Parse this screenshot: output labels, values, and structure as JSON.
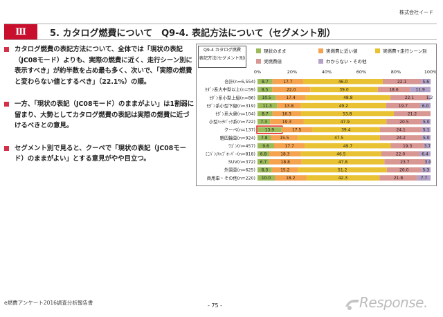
{
  "header": {
    "company": "株式会社イード",
    "section_number": "Ⅲ",
    "title": "5. カタログ燃費について　Q9-4. 表記方法について（セグメント別）"
  },
  "bullets": [
    "カタログ燃費の表記方法について、全体では「現状の表記（JC08モード）よりも、実際の燃費に近く、走行シーン別に表示すべき」が約半数を占め最も多く、次いで、「実際の燃費と変わらない値とするべき」（22.1%）の順。",
    "一方、「現状の表記（JC08モード）のままがよい」は1割弱に留まり、大勢としてカタログ燃費の表記は実際の燃費に近づけるべきとの意見。",
    "セグメント別で見ると、クーペで「現状の表記（JC08モード）のままがよい」とする意見がやや目立つ。"
  ],
  "question": {
    "line1": "Q9-4 カタログ燃費",
    "line2": "表記方法(セグメント別)"
  },
  "footer": {
    "left": "e燃費アンケート2016調査分析報告書",
    "page": "- 75 -",
    "logo": "Response."
  },
  "colors": {
    "s1": "#9bbb59",
    "s2": "#f5a34e",
    "s3": "#e8c232",
    "s4": "#d99794",
    "s5": "#b3a2c7",
    "highlight": "#e60000"
  },
  "chart_data": {
    "type": "bar",
    "orientation": "horizontal",
    "stacked": true,
    "xlim": [
      0,
      100
    ],
    "xticks": [
      "0%",
      "20%",
      "40%",
      "60%",
      "80%",
      "100%"
    ],
    "legend_position": "top",
    "categories": [
      "合計(n=6,554)",
      "ｾﾀﾞﾝ系大中型以上(n=59)",
      "ｾﾀﾞﾝ系小型上級(n=86)",
      "ｾﾀﾞﾝ系小型下級(n=319)",
      "ｾﾀﾞﾝ系大衆(n=104)",
      "小型ﾊｯﾁﾊﾞｯｸ系(n=722)",
      "クーペ(n=137)",
      "軽四輪車(n=924)",
      "ﾜｺﾞﾝ(n=457)",
      "ﾐﾆﾊﾞﾝ/ｷｬﾌﾞｵｰﾊﾞｰ(n=818)",
      "SUV(n=372)",
      "外国車(n=625)",
      "商用車・その他(n=220)"
    ],
    "series": [
      {
        "name": "現状のまま",
        "values": [
          8.7,
          8.5,
          10.5,
          11.3,
          8.7,
          7.3,
          13.9,
          7.8,
          9.6,
          6.8,
          6.7,
          8.3,
          10.0
        ],
        "labels": [
          "8.7",
          "8.5",
          "10.5",
          "11.3",
          "8.7",
          "7.3",
          "13.9",
          "7.8",
          "9.6",
          "6.8",
          "6.7",
          "8.3",
          "10.0"
        ]
      },
      {
        "name": "実燃費に近い値",
        "values": [
          17.7,
          22.0,
          17.4,
          13.8,
          16.3,
          19.3,
          17.5,
          15.5,
          17.7,
          18.3,
          18.8,
          15.2,
          18.2
        ],
        "labels": [
          "17.7",
          "22.0",
          "17.4",
          "13.8",
          "16.3",
          "19.3",
          "17.5",
          "15.5",
          "17.7",
          "18.3",
          "18.8",
          "15.2",
          "18.2"
        ]
      },
      {
        "name": "実燃費+走行シーン別",
        "values": [
          46.0,
          39.0,
          48.8,
          49.2,
          53.8,
          47.9,
          39.4,
          47.5,
          49.7,
          46.5,
          47.8,
          51.2,
          42.3
        ],
        "labels": [
          "46.0",
          "39.0",
          "48.8",
          "49.2",
          "53.8",
          "47.9",
          "39.4",
          "47.5",
          "49.7",
          "46.5",
          "47.8",
          "51.2",
          "42.3"
        ]
      },
      {
        "name": "実燃費値",
        "values": [
          22.1,
          18.6,
          22.1,
          19.7,
          21.2,
          20.5,
          24.1,
          24.2,
          19.3,
          22.0,
          23.7,
          20.0,
          21.8
        ],
        "labels": [
          "22.1",
          "18.6",
          "22.1",
          "19.7",
          "21.2",
          "20.5",
          "24.1",
          "24.2",
          "19.3",
          "22.0",
          "23.7",
          "20.0",
          "21.8"
        ]
      },
      {
        "name": "わからない・その他",
        "values": [
          5.6,
          11.9,
          1.2,
          6.0,
          0.0,
          5.0,
          5.1,
          5.0,
          3.7,
          6.4,
          3.0,
          5.3,
          7.7
        ],
        "labels": [
          "5.6",
          "11.9",
          "1.2",
          "6.0",
          "",
          "5.0",
          "5.1",
          "5.0",
          "3.7",
          "6.4",
          "3.0",
          "5.3",
          "7.7"
        ]
      }
    ],
    "highlight_category": "クーペ(n=137)",
    "highlight_series": "現状のまま"
  }
}
